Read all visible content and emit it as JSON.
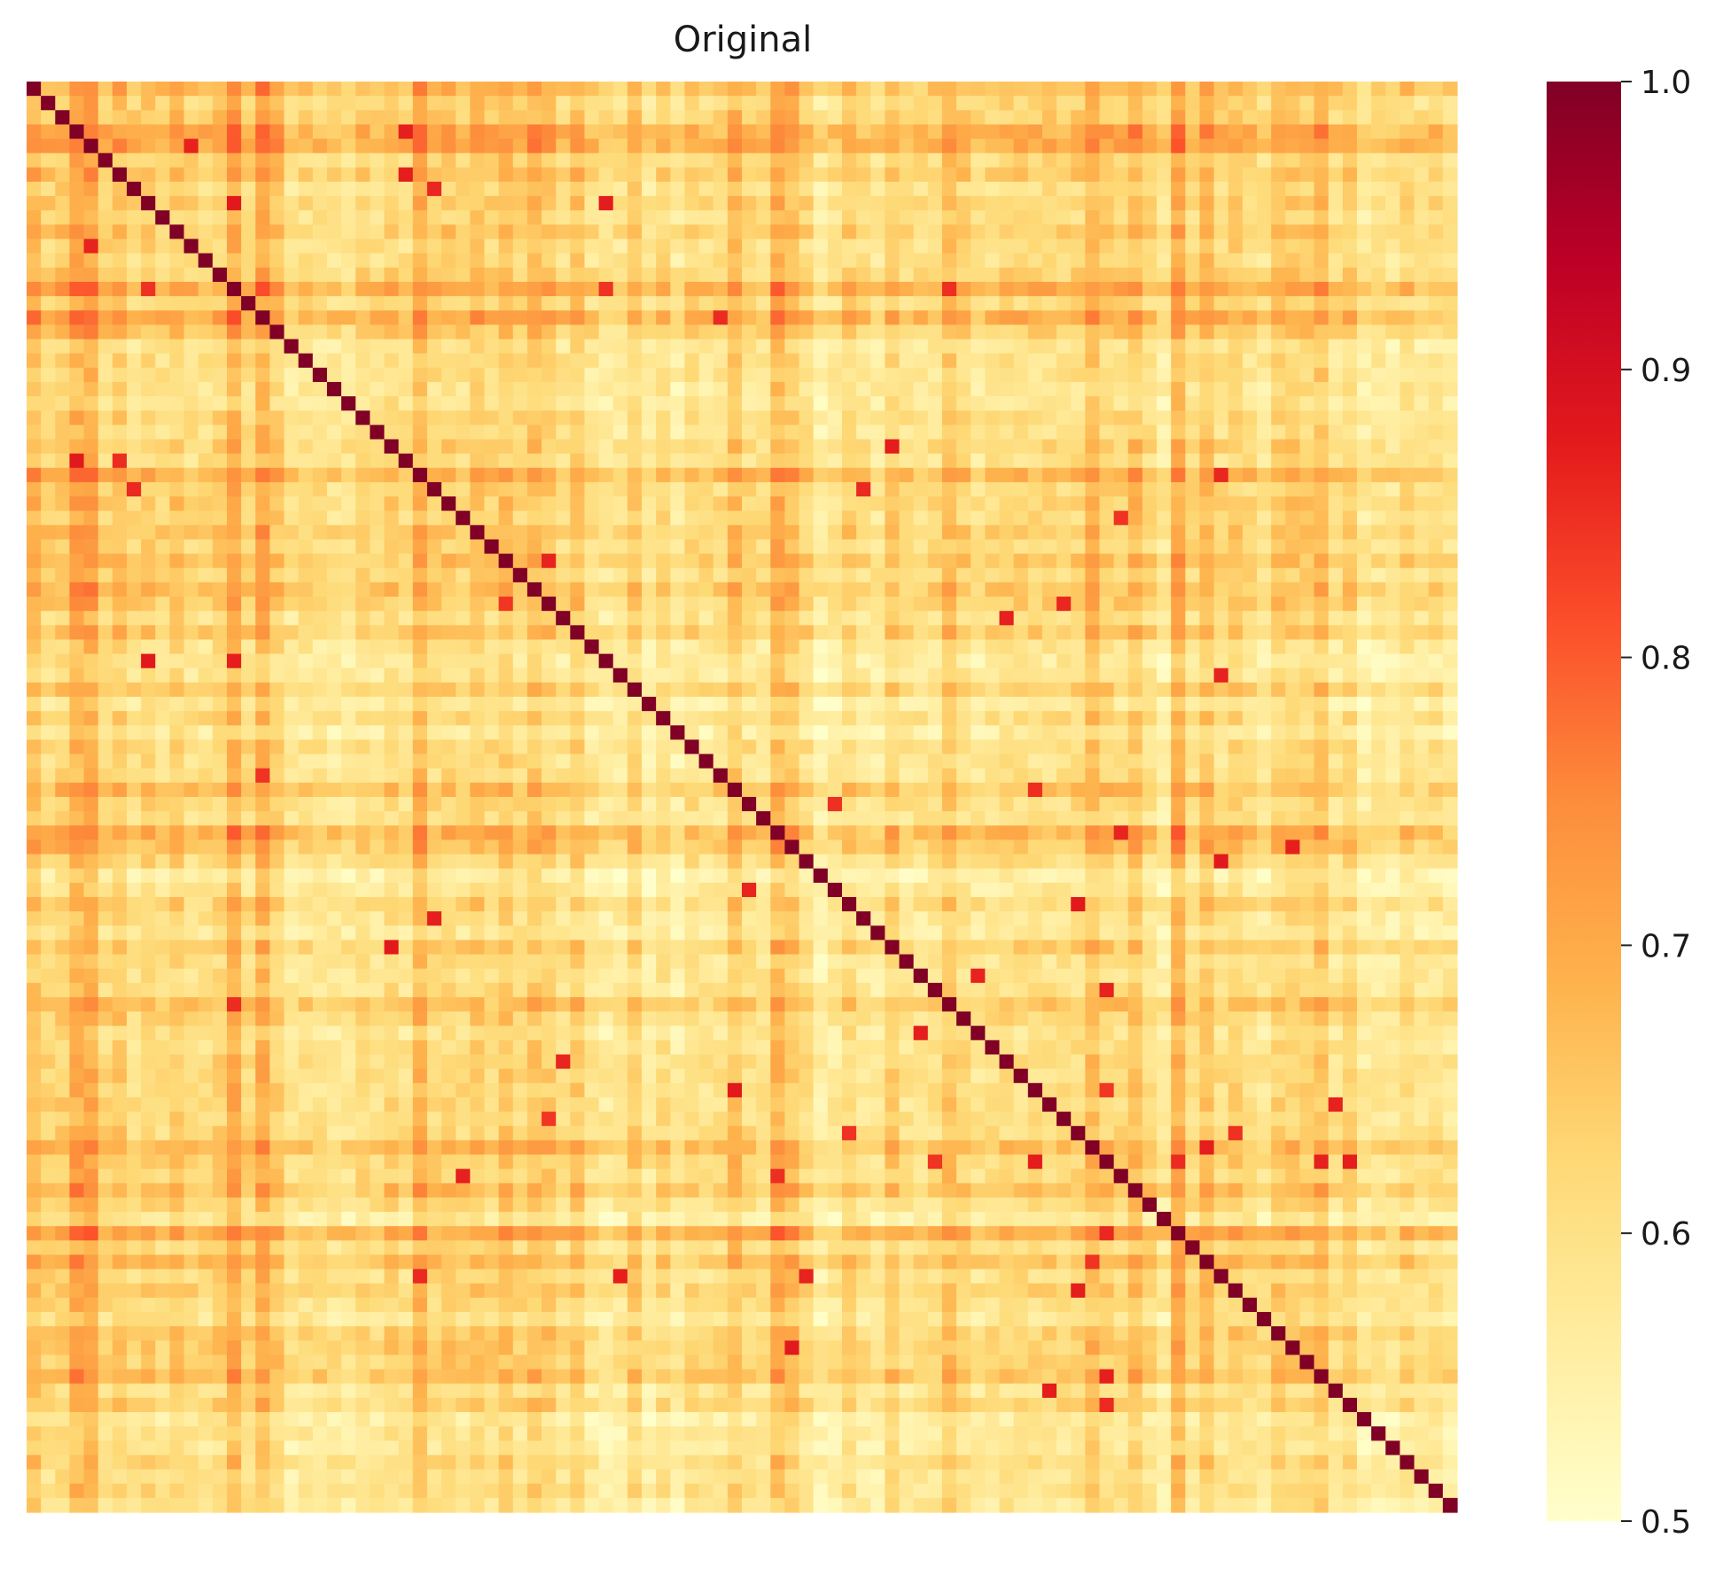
{
  "chart_data": {
    "type": "heatmap",
    "title": "Original",
    "matrix_size": 100,
    "symmetric": true,
    "diagonal_value": 1.0,
    "colorbar": {
      "min": 0.5,
      "max": 1.0,
      "ticks": [
        {
          "value": 1.0,
          "label": "1.0"
        },
        {
          "value": 0.9,
          "label": "0.9"
        },
        {
          "value": 0.8,
          "label": "0.8"
        },
        {
          "value": 0.7,
          "label": "0.7"
        },
        {
          "value": 0.6,
          "label": "0.6"
        },
        {
          "value": 0.5,
          "label": "0.5"
        }
      ],
      "colormap": "YlOrRd",
      "color_stops": [
        "#ffffcc",
        "#ffeda0",
        "#fed976",
        "#feb24c",
        "#fd8d3c",
        "#fc4e2a",
        "#e31a1c",
        "#bd0026",
        "#800026"
      ]
    },
    "row_levels": [
      0.72,
      0.63,
      0.66,
      0.78,
      0.8,
      0.63,
      0.68,
      0.6,
      0.64,
      0.6,
      0.66,
      0.6,
      0.6,
      0.64,
      0.78,
      0.62,
      0.78,
      0.66,
      0.55,
      0.58,
      0.58,
      0.56,
      0.55,
      0.6,
      0.58,
      0.63,
      0.58,
      0.75,
      0.62,
      0.64,
      0.61,
      0.67,
      0.62,
      0.68,
      0.62,
      0.7,
      0.66,
      0.58,
      0.67,
      0.56,
      0.53,
      0.54,
      0.64,
      0.52,
      0.6,
      0.52,
      0.6,
      0.57,
      0.58,
      0.7,
      0.6,
      0.57,
      0.76,
      0.7,
      0.6,
      0.5,
      0.54,
      0.63,
      0.56,
      0.54,
      0.65,
      0.57,
      0.57,
      0.58,
      0.69,
      0.62,
      0.56,
      0.58,
      0.6,
      0.6,
      0.6,
      0.6,
      0.6,
      0.61,
      0.72,
      0.64,
      0.62,
      0.71,
      0.6,
      0.52,
      0.78,
      0.6,
      0.7,
      0.6,
      0.64,
      0.6,
      0.56,
      0.65,
      0.65,
      0.64,
      0.7,
      0.57,
      0.62,
      0.52,
      0.54,
      0.54,
      0.6,
      0.55,
      0.58,
      0.55
    ],
    "bright_cells": [
      [
        7,
        28
      ],
      [
        14,
        40
      ],
      [
        14,
        64
      ],
      [
        16,
        48
      ],
      [
        30,
        76
      ],
      [
        27,
        83
      ],
      [
        41,
        83
      ],
      [
        25,
        60
      ],
      [
        36,
        72
      ],
      [
        50,
        56
      ],
      [
        52,
        76
      ],
      [
        54,
        83
      ],
      [
        63,
        75
      ],
      [
        66,
        62
      ],
      [
        70,
        49
      ],
      [
        70,
        75
      ],
      [
        73,
        57
      ],
      [
        75,
        80
      ],
      [
        79,
        79
      ],
      [
        82,
        74
      ],
      [
        84,
        73
      ],
      [
        88,
        53
      ],
      [
        90,
        75
      ],
      [
        91,
        71
      ],
      [
        92,
        75
      ],
      [
        11,
        4
      ],
      [
        37,
        68
      ],
      [
        28,
        58
      ],
      [
        36,
        33
      ],
      [
        14,
        8
      ],
      [
        6,
        26
      ],
      [
        3,
        26
      ],
      [
        8,
        40
      ]
    ]
  }
}
